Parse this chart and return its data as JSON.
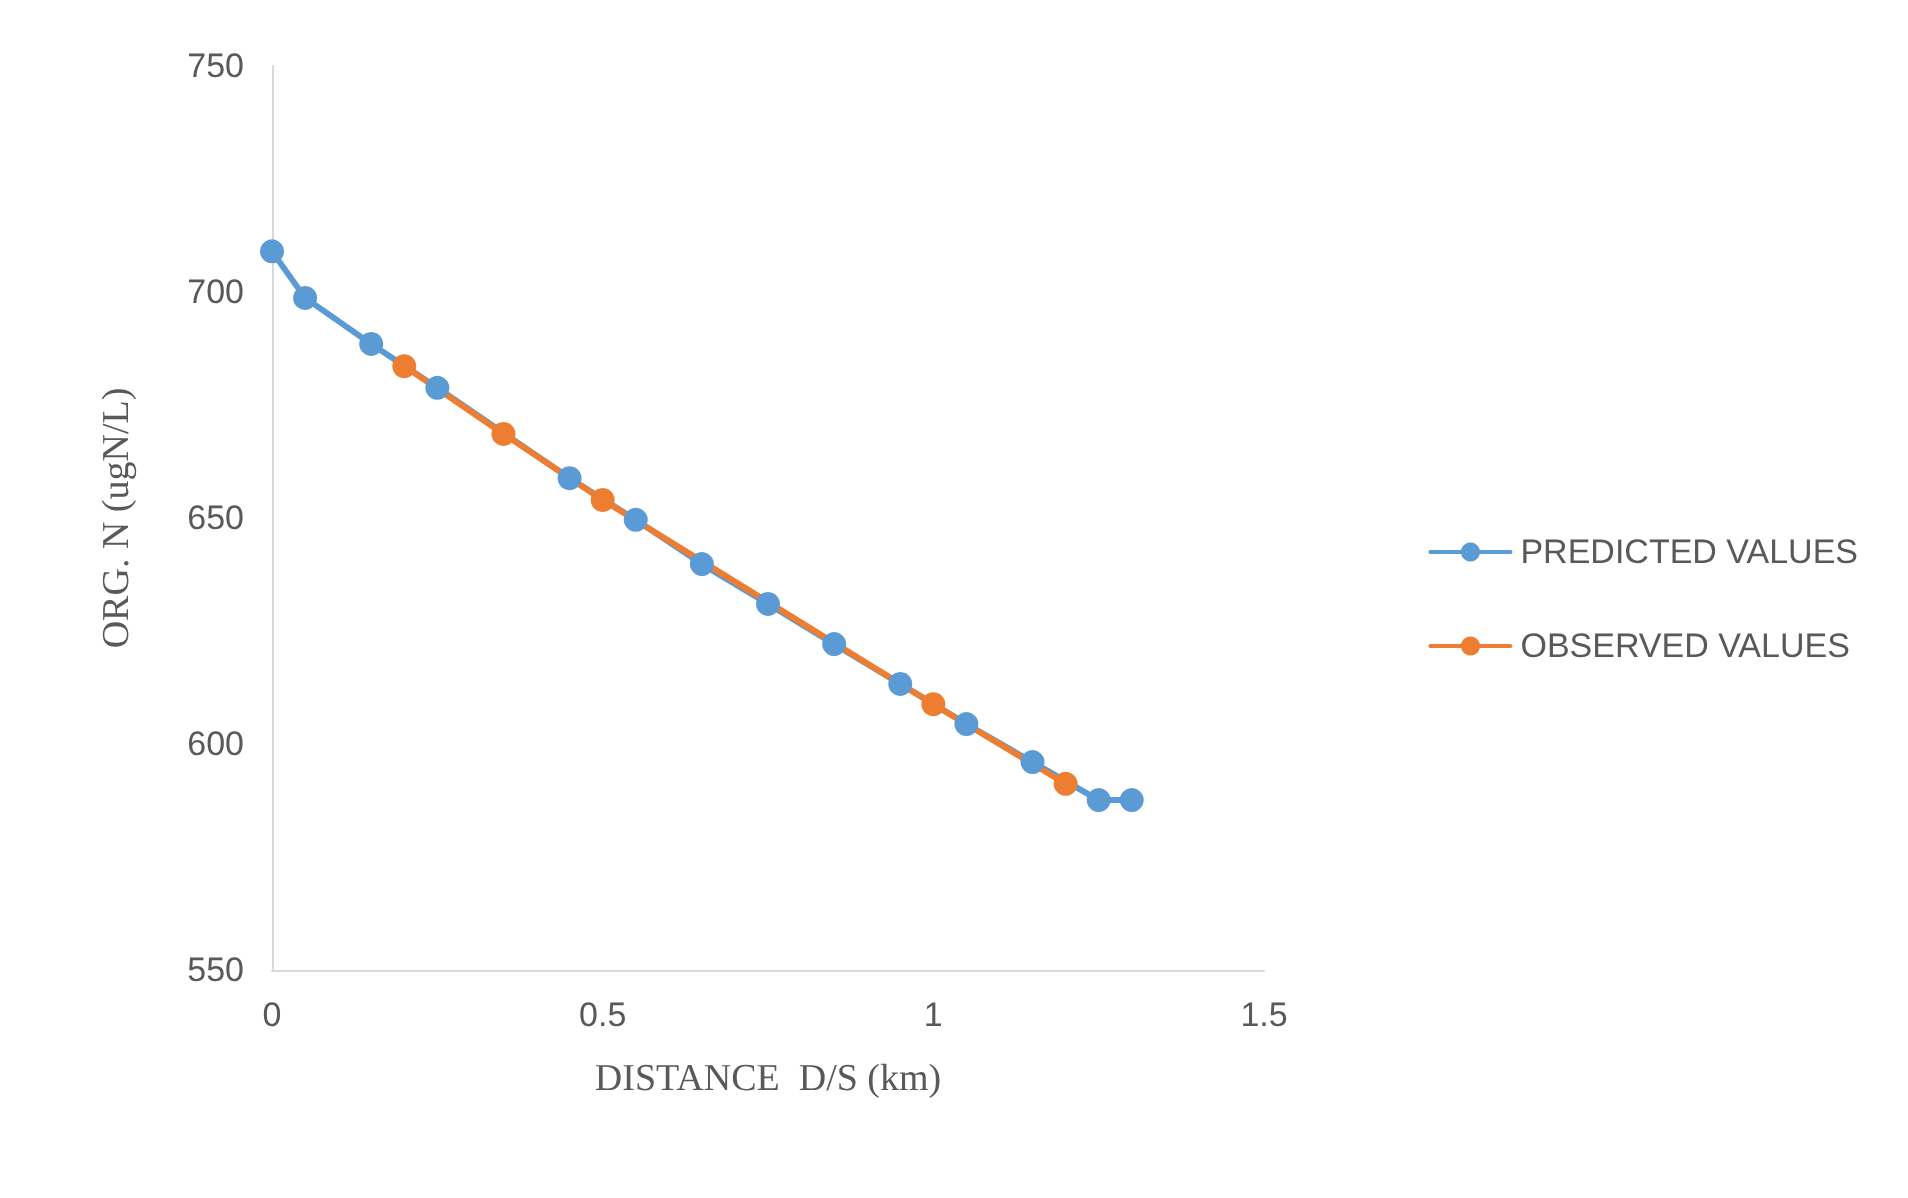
{
  "chart_data": {
    "type": "line",
    "xlabel": "DISTANCE  D/S (km)",
    "ylabel": "ORG. N (ugN/L)",
    "xlim": [
      0,
      1.5
    ],
    "xticks": [
      0,
      0.5,
      1,
      1.5
    ],
    "ylim": [
      550,
      750
    ],
    "yticks": [
      550,
      600,
      650,
      700,
      750
    ],
    "grid": false,
    "legend": "right",
    "marker": "circle",
    "line_style": "solid",
    "series": [
      {
        "name": "PREDICTED VALUES",
        "color": "#5b9bd5",
        "x": [
          0,
          0.05,
          0.15,
          0.25,
          0.35,
          0.45,
          0.55,
          0.65,
          0.75,
          0.85,
          0.95,
          1.05,
          1.15,
          1.25,
          1.3
        ],
        "values": [
          709,
          698.7,
          688.5,
          678.8,
          null,
          658.8,
          649.6,
          639.8,
          631,
          622.1,
          613.3,
          604.4,
          596,
          587.6,
          587.6
        ]
      },
      {
        "name": "OBSERVED VALUES",
        "color": "#ed7d31",
        "x": [
          0.2,
          0.35,
          0.5,
          1,
          1.2
        ],
        "values": [
          683.6,
          668.6,
          654,
          608.8,
          591.2
        ]
      }
    ]
  }
}
